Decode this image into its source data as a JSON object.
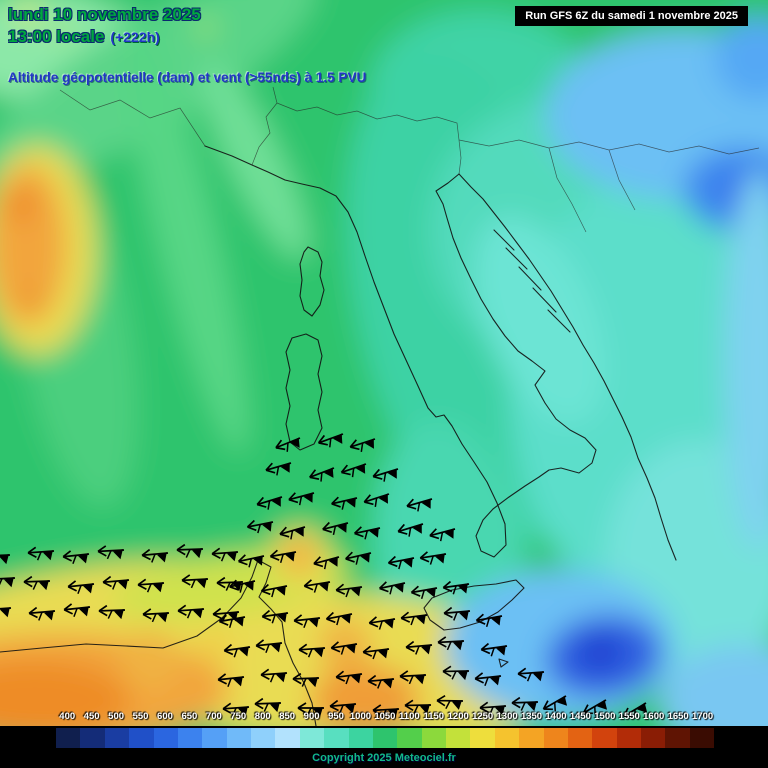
{
  "header": {
    "date_line": "lundi 10 novembre 2025",
    "time_line": "13:00 locale",
    "run_offset": "(+222h)",
    "subtitle": "Altitude géopotentielle (dam) et vent (>55nds) à 1.5 PVU"
  },
  "run_box": {
    "label": "Run GFS 6Z du samedi 1 novembre 2025"
  },
  "legend": {
    "values": [
      "400",
      "450",
      "500",
      "550",
      "600",
      "650",
      "700",
      "750",
      "800",
      "850",
      "900",
      "950",
      "1000",
      "1050",
      "1100",
      "1150",
      "1200",
      "1250",
      "1300",
      "1350",
      "1400",
      "1450",
      "1500",
      "1550",
      "1600",
      "1650",
      "1700"
    ],
    "colors": [
      "#101f4e",
      "#142c78",
      "#1a3da2",
      "#2050c8",
      "#2b66e0",
      "#3c82ee",
      "#55a0f6",
      "#70baf9",
      "#8fd0fb",
      "#b2e2fd",
      "#7ee8d8",
      "#58dfc0",
      "#3cd4a0",
      "#2ec46d",
      "#53cf4b",
      "#8cd93c",
      "#c3e13a",
      "#eede3c",
      "#f5c32e",
      "#f4a424",
      "#ee851c",
      "#e36313",
      "#d2430d",
      "#b22c08",
      "#8a1d05",
      "#5f1403",
      "#3a0c02"
    ]
  },
  "footer": {
    "copyright": "Copyright 2025 Meteociel.fr"
  },
  "colors": {
    "title_green": "#00a83e",
    "title_blue": "#2336c8",
    "run_box_bg": "#000000",
    "run_box_text": "#ffffff",
    "copyright_color": "#12b88a"
  }
}
